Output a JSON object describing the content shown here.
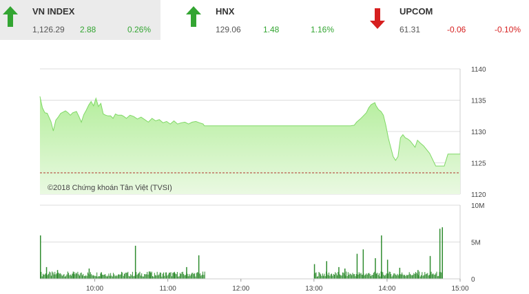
{
  "tickers": [
    {
      "name": "VN INDEX",
      "value": "1,126.29",
      "change": "2.88",
      "percent": "0.26%",
      "direction": "up"
    },
    {
      "name": "HNX",
      "value": "129.06",
      "change": "1.48",
      "percent": "1.16%",
      "direction": "up"
    },
    {
      "name": "UPCOM",
      "value": "61.31",
      "change": "-0.06",
      "percent": "-0.10%",
      "direction": "down"
    }
  ],
  "colors": {
    "up": "#33a532",
    "down": "#d61f1f",
    "area_fill": "#b4ee9c",
    "reference_line": "#b0342b"
  },
  "watermark": "©2018 Chứng khoán Tân Việt (TVSI)",
  "chart_data": [
    {
      "type": "area",
      "title": "",
      "x_ticks": [
        "10:00",
        "11:00",
        "12:00",
        "13:00",
        "14:00",
        "15:00"
      ],
      "y_ticks": [
        "1140",
        "1135",
        "1130",
        "1125",
        "1120"
      ],
      "ylim": [
        1120,
        1140
      ],
      "reference_value": 1123.4,
      "grid": true,
      "x": [
        "9:15",
        "9:17",
        "9:19",
        "9:21",
        "9:24",
        "9:26",
        "9:28",
        "9:30",
        "9:32",
        "9:34",
        "9:36",
        "9:38",
        "9:40",
        "9:42",
        "9:45",
        "9:47",
        "9:49",
        "9:51",
        "9:53",
        "9:55",
        "9:57",
        "9:59",
        "10:01",
        "10:03",
        "10:05",
        "10:07",
        "10:09",
        "10:11",
        "10:13",
        "10:15",
        "10:17",
        "10:19",
        "10:22",
        "10:24",
        "10:26",
        "10:29",
        "10:32",
        "10:35",
        "10:38",
        "10:41",
        "10:44",
        "10:47",
        "10:50",
        "10:53",
        "10:56",
        "10:59",
        "11:02",
        "11:05",
        "11:08",
        "11:11",
        "11:14",
        "11:17",
        "11:20",
        "11:23",
        "11:26",
        "11:29",
        "11:30",
        "13:00",
        "13:03",
        "13:05",
        "13:08",
        "13:10",
        "13:13",
        "13:15",
        "13:18",
        "13:20",
        "13:22",
        "13:25",
        "13:28",
        "13:30",
        "13:33",
        "13:35",
        "13:38",
        "13:40",
        "13:43",
        "13:45",
        "13:47",
        "13:50",
        "13:51",
        "13:53",
        "13:55",
        "13:57",
        "13:59",
        "14:01",
        "14:03",
        "14:05",
        "14:07",
        "14:09",
        "14:11",
        "14:13",
        "14:15",
        "14:17",
        "14:19",
        "14:21",
        "14:23",
        "14:25",
        "14:27",
        "14:30",
        "14:35",
        "14:40",
        "14:45",
        "14:47",
        "14:50",
        "14:55",
        "15:00"
      ],
      "y": [
        1135.6,
        1133.8,
        1133.0,
        1132.9,
        1131.6,
        1130.1,
        1131.8,
        1132.3,
        1132.9,
        1133.1,
        1133.3,
        1133.0,
        1132.6,
        1133.0,
        1133.2,
        1132.4,
        1131.5,
        1132.7,
        1133.4,
        1134.2,
        1134.8,
        1134.1,
        1135.3,
        1134.0,
        1134.5,
        1132.8,
        1132.6,
        1132.5,
        1132.5,
        1132.1,
        1132.8,
        1132.6,
        1132.6,
        1132.4,
        1132.1,
        1132.6,
        1132.4,
        1132.0,
        1132.3,
        1131.9,
        1131.5,
        1132.1,
        1131.7,
        1131.9,
        1131.4,
        1131.6,
        1131.2,
        1131.7,
        1131.2,
        1131.4,
        1131.5,
        1131.2,
        1131.5,
        1131.6,
        1131.4,
        1131.2,
        1130.9,
        1130.9,
        1130.9,
        1130.9,
        1130.9,
        1130.9,
        1130.9,
        1130.9,
        1130.9,
        1130.9,
        1130.9,
        1130.9,
        1130.9,
        1130.9,
        1131.0,
        1131.5,
        1132.0,
        1132.4,
        1133.0,
        1133.8,
        1134.3,
        1134.6,
        1134.1,
        1133.5,
        1133.2,
        1132.6,
        1131.0,
        1129.0,
        1127.5,
        1126.0,
        1125.4,
        1126.0,
        1129.0,
        1129.5,
        1129.0,
        1128.8,
        1128.5,
        1128.0,
        1127.5,
        1128.6,
        1128.2,
        1127.7,
        1126.5,
        1124.5,
        1124.5,
        1124.5,
        1126.4,
        1126.4,
        1126.4
      ]
    },
    {
      "type": "bar",
      "title": "",
      "x_ticks": [
        "10:00",
        "11:00",
        "12:00",
        "13:00",
        "14:00",
        "15:00"
      ],
      "y_ticks": [
        "10M",
        "5M",
        "0"
      ],
      "ylim": [
        0,
        10
      ],
      "unit": "M",
      "x": [
        "9:15",
        "9:20",
        "9:29",
        "9:42",
        "9:55",
        "10:05",
        "10:33",
        "10:45",
        "11:05",
        "11:15",
        "11:25",
        "13:00",
        "13:10",
        "13:20",
        "13:25",
        "13:35",
        "13:40",
        "13:50",
        "13:55",
        "14:00",
        "14:10",
        "14:25",
        "14:35",
        "14:43",
        "14:45"
      ],
      "values": [
        5.9,
        1.6,
        1.2,
        0.7,
        1.4,
        0.9,
        4.5,
        1.0,
        0.8,
        1.6,
        3.2,
        2.0,
        2.4,
        1.6,
        1.4,
        3.4,
        4.0,
        2.8,
        5.9,
        2.6,
        1.5,
        1.2,
        3.1,
        6.8,
        7.0
      ],
      "base_volume_range": [
        0.3,
        1.0
      ]
    }
  ]
}
